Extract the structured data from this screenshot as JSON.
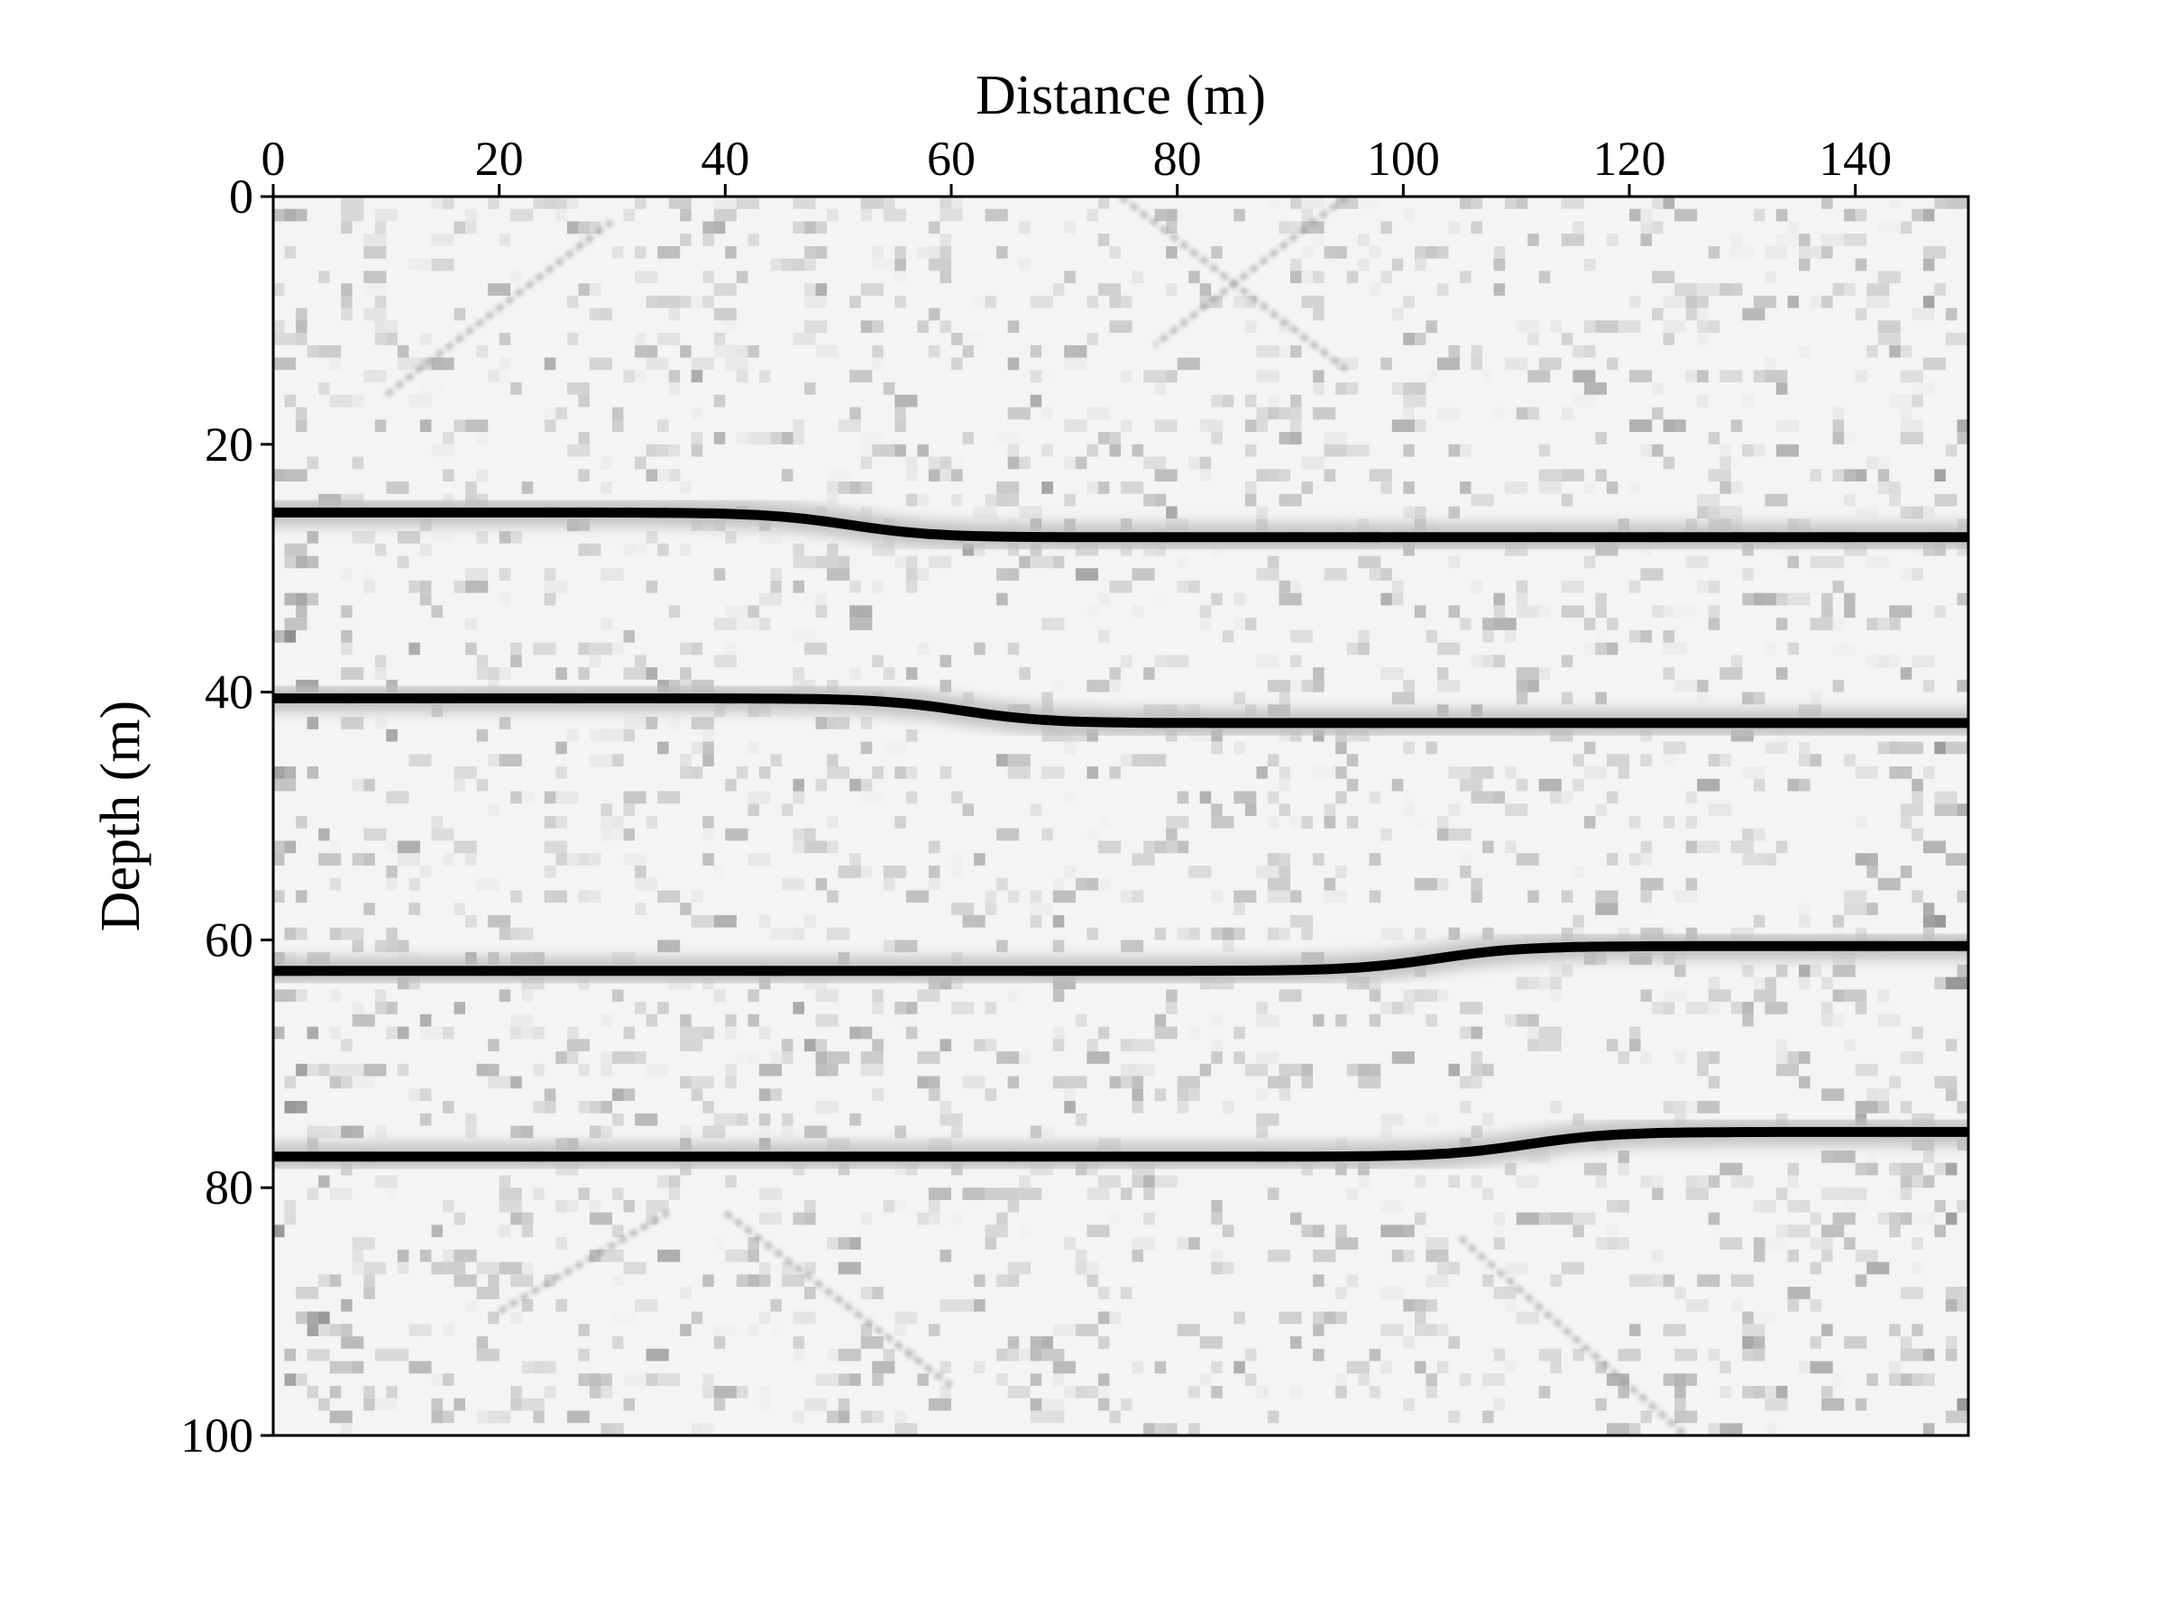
{
  "chart_data": {
    "type": "heatmap",
    "colormap": "grayscale (white = low amplitude, black = high amplitude)",
    "xlabel": "Distance (m)",
    "ylabel": "Depth (m)",
    "x_axis_position": "top",
    "y_axis_inverted": true,
    "xlim": [
      0,
      150
    ],
    "ylim": [
      0,
      100
    ],
    "xticks": [
      "0",
      "20",
      "40",
      "60",
      "80",
      "100",
      "120",
      "140"
    ],
    "yticks": [
      "0",
      "20",
      "40",
      "60",
      "80",
      "100"
    ],
    "grid": false,
    "reflectors": [
      {
        "left_depth": 25.5,
        "right_depth": 27.5,
        "transition_x": [
          36,
          66
        ]
      },
      {
        "left_depth": 40.5,
        "right_depth": 42.5,
        "transition_x": [
          46,
          76
        ]
      },
      {
        "left_depth": 62.5,
        "right_depth": 60.5,
        "transition_x": [
          88,
          118
        ]
      },
      {
        "left_depth": 77.5,
        "right_depth": 75.5,
        "transition_x": [
          96,
          126
        ]
      }
    ],
    "diagonal_noise_streaks": [
      {
        "from": [
          75,
          0
        ],
        "to": [
          95,
          14
        ]
      },
      {
        "from": [
          95,
          0
        ],
        "to": [
          78,
          12
        ]
      },
      {
        "from": [
          10,
          16
        ],
        "to": [
          30,
          2
        ]
      },
      {
        "from": [
          40,
          82
        ],
        "to": [
          60,
          96
        ]
      },
      {
        "from": [
          105,
          84
        ],
        "to": [
          125,
          100
        ]
      },
      {
        "from": [
          20,
          90
        ],
        "to": [
          35,
          82
        ]
      }
    ]
  }
}
